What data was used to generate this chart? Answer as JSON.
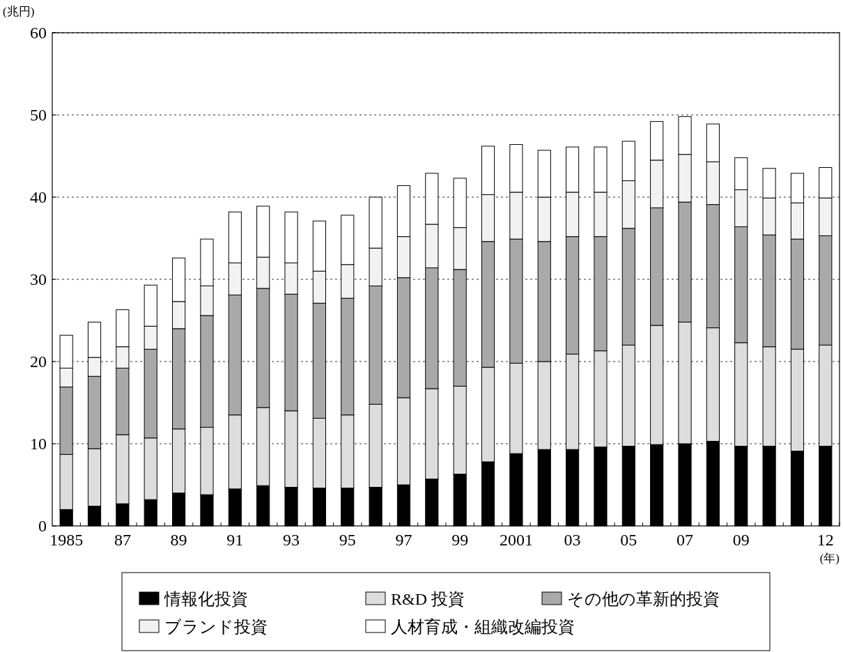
{
  "chart_data": {
    "type": "bar",
    "stacked": true,
    "ylabel": "(兆円)",
    "xlabel": "(年)",
    "categories": [
      "1985",
      null,
      "87",
      null,
      "89",
      null,
      "91",
      null,
      "93",
      null,
      "95",
      null,
      "97",
      null,
      "99",
      null,
      "2001",
      null,
      "03",
      null,
      "05",
      null,
      "07",
      null,
      "09",
      null,
      null,
      "12"
    ],
    "series": [
      {
        "name": "情報化投資",
        "color": "#000000",
        "values": [
          2.0,
          2.4,
          2.7,
          3.2,
          4.0,
          3.8,
          4.5,
          4.9,
          4.7,
          4.6,
          4.6,
          4.7,
          5.0,
          5.7,
          6.3,
          7.8,
          8.8,
          9.3,
          9.3,
          9.6,
          9.7,
          9.9,
          10.0,
          10.3,
          9.7,
          9.7,
          9.1,
          9.7
        ]
      },
      {
        "name": "R&D 投資",
        "color": "#dddddd",
        "values": [
          6.7,
          7.0,
          8.4,
          7.5,
          7.8,
          8.2,
          9.0,
          9.5,
          9.3,
          8.5,
          8.9,
          10.1,
          10.6,
          11.0,
          10.7,
          11.5,
          11.0,
          10.7,
          11.6,
          11.7,
          12.3,
          14.5,
          14.8,
          13.8,
          12.6,
          12.1,
          12.4,
          12.3
        ]
      },
      {
        "name": "その他の革新的投資",
        "color": "#a9a9a9",
        "values": [
          8.2,
          8.8,
          8.1,
          10.8,
          12.2,
          13.6,
          14.6,
          14.5,
          14.2,
          14.0,
          14.2,
          14.4,
          14.6,
          14.7,
          14.2,
          15.3,
          15.1,
          14.6,
          14.3,
          13.9,
          14.2,
          14.3,
          14.6,
          15.0,
          14.1,
          13.6,
          13.4,
          13.3
        ]
      },
      {
        "name": "ブランド投資",
        "color": "#f2f2f2",
        "values": [
          2.3,
          2.3,
          2.6,
          2.8,
          3.3,
          3.6,
          3.9,
          3.8,
          3.8,
          3.9,
          4.1,
          4.6,
          5.0,
          5.3,
          5.1,
          5.7,
          5.7,
          5.4,
          5.4,
          5.4,
          5.8,
          5.8,
          5.8,
          5.2,
          4.5,
          4.5,
          4.4,
          4.6
        ]
      },
      {
        "name": "人材育成・組織改編投資",
        "color": "#ffffff",
        "values": [
          4.0,
          4.3,
          4.5,
          5.0,
          5.3,
          5.7,
          6.2,
          6.2,
          6.2,
          6.1,
          6.0,
          6.2,
          6.2,
          6.2,
          6.0,
          5.9,
          5.8,
          5.7,
          5.5,
          5.5,
          4.8,
          4.7,
          4.6,
          4.6,
          3.9,
          3.6,
          3.6,
          3.7
        ]
      }
    ],
    "ylim": [
      0,
      60
    ],
    "yticks": [
      0,
      10,
      20,
      30,
      40,
      50,
      60
    ],
    "grid": "y",
    "legend": "bottom"
  }
}
